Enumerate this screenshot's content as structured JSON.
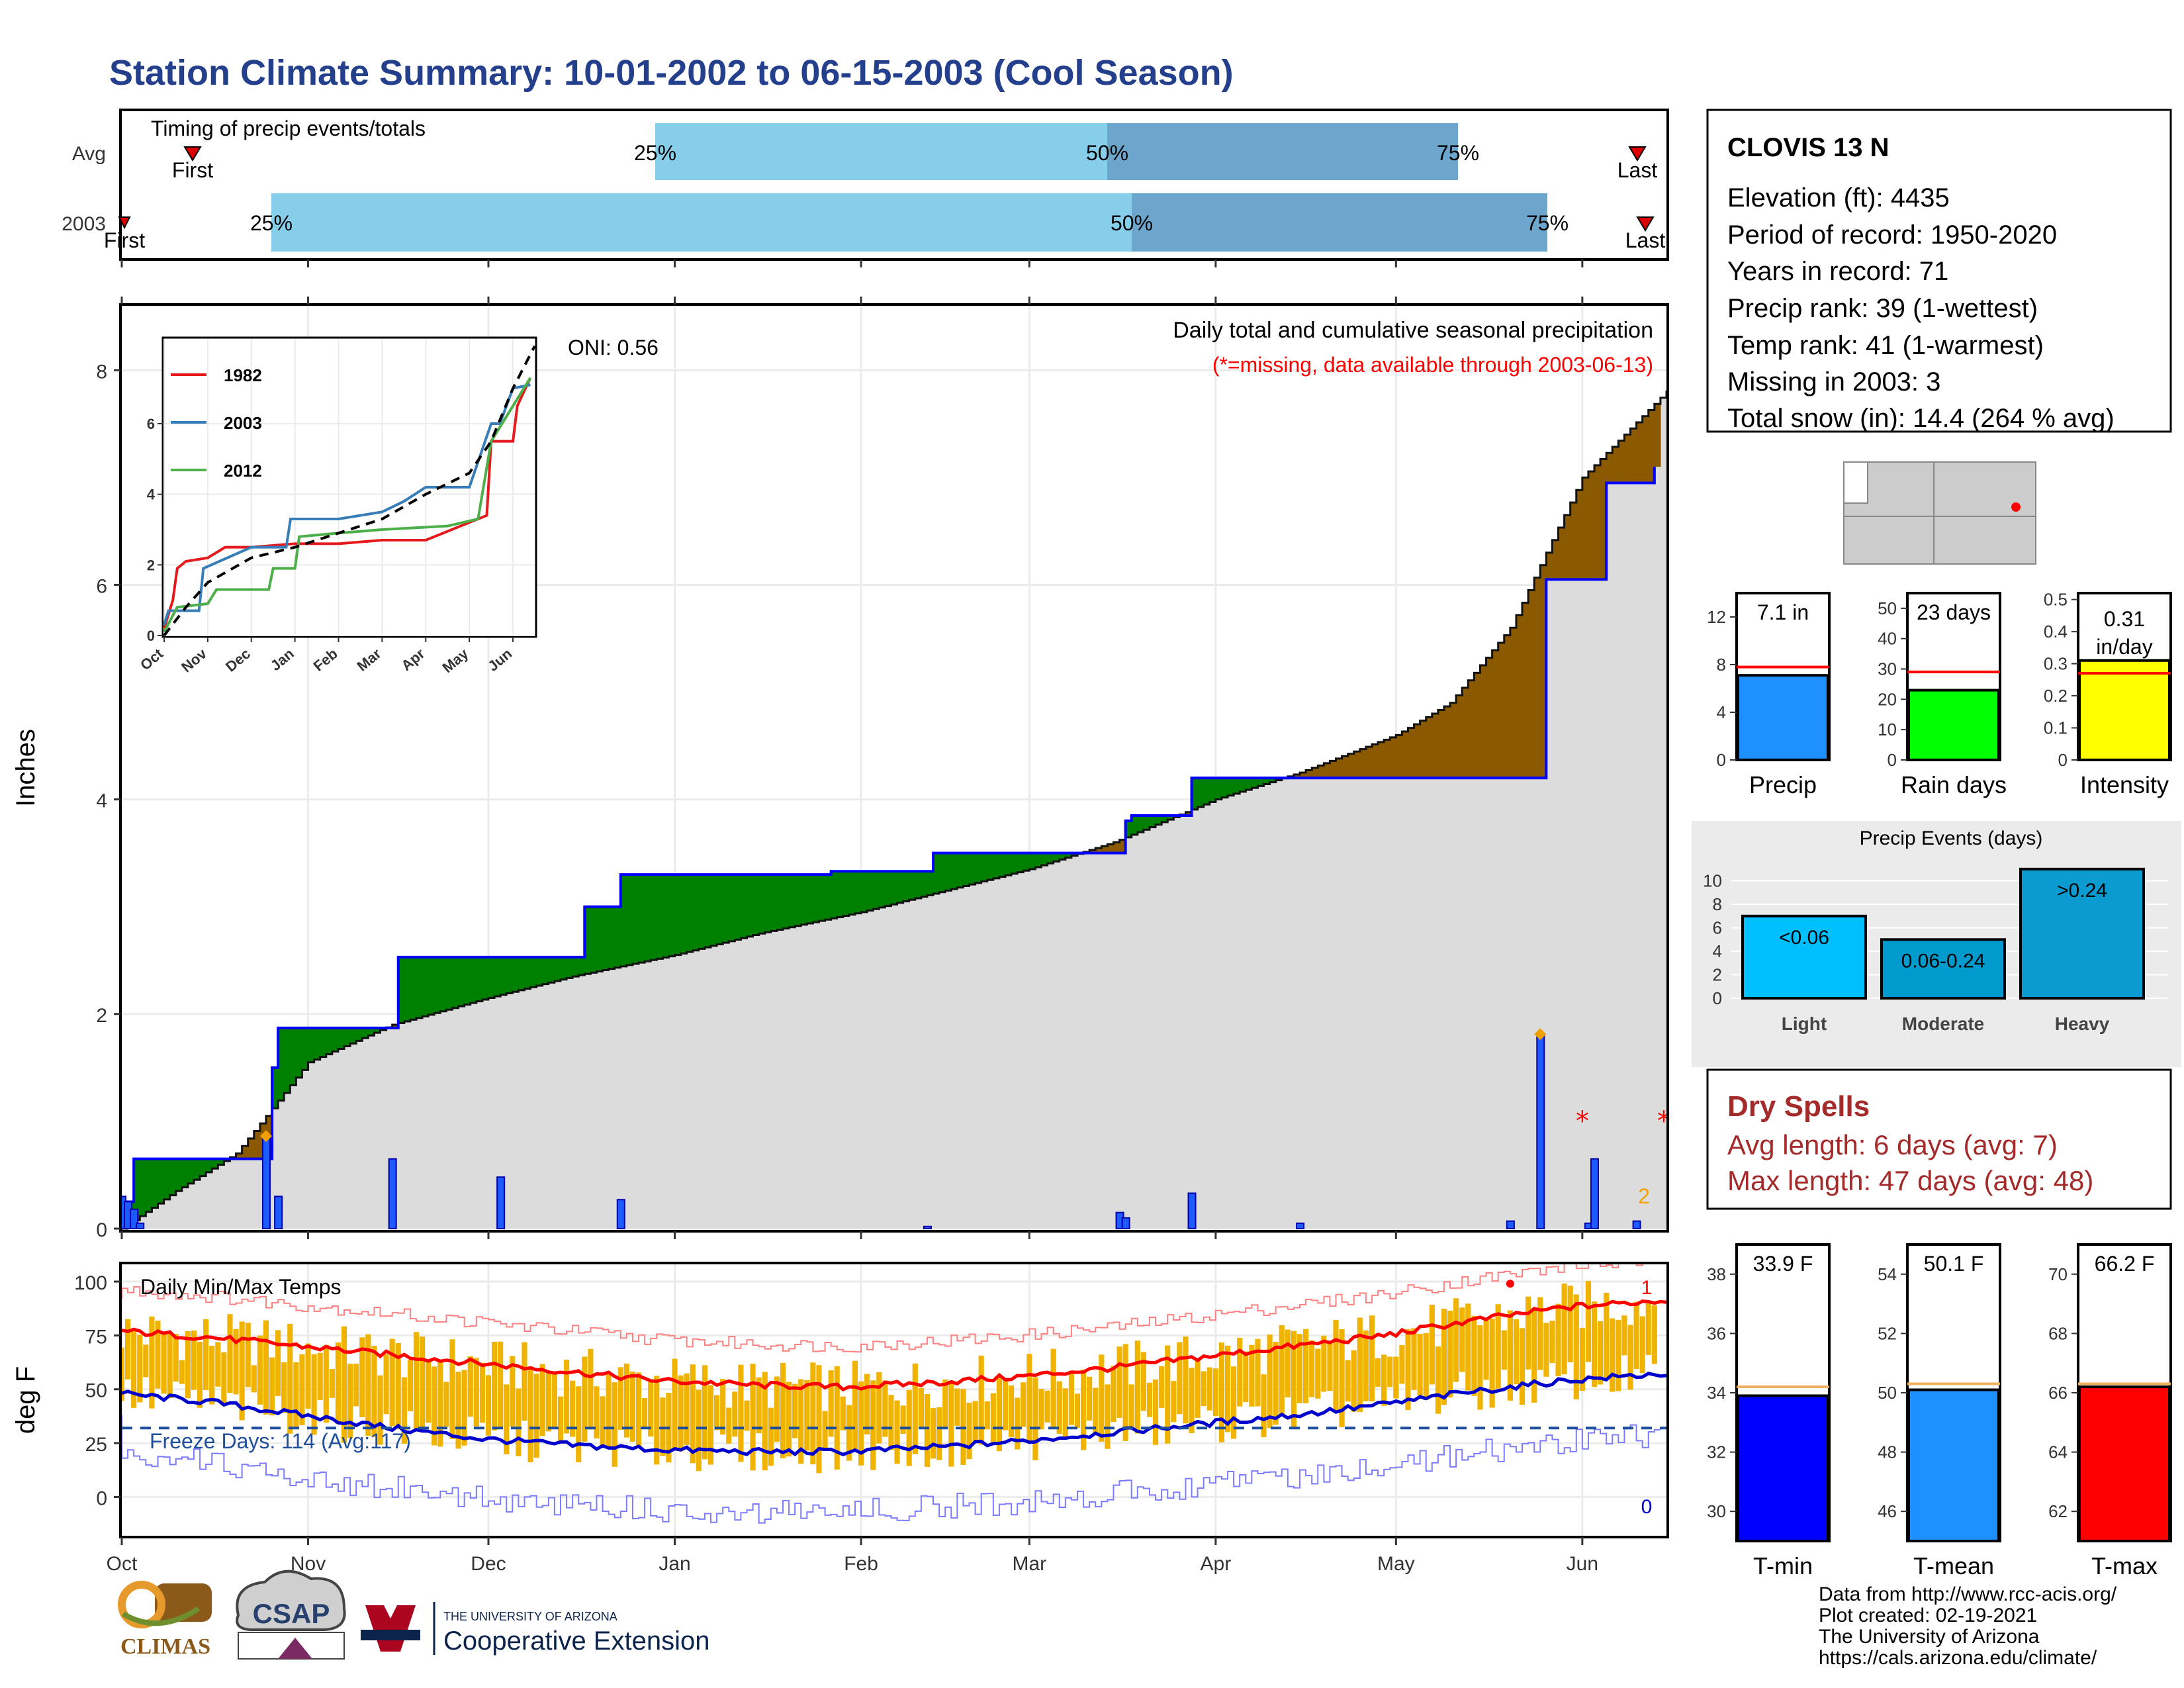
{
  "title": "Station Climate Summary: 10-01-2002 to 06-15-2003 (Cool Season)",
  "timing": {
    "label": "Timing of precip events/totals",
    "rows": [
      {
        "name": "Avg",
        "p25": "Dec 25",
        "p50": "Mar 10",
        "p75": "May 1",
        "first_label": "First",
        "last_label": "Last",
        "first": "Oct 13",
        "last": "Jun 12"
      },
      {
        "name": "2003",
        "p25": "Nov 20",
        "p50": "Mar 14",
        "p75": "May 16",
        "first_label": "First",
        "last_label": "Last",
        "first": "Oct 1",
        "last": "Jun 13"
      }
    ],
    "pct_labels": [
      "25%",
      "50%",
      "75%"
    ]
  },
  "precip_panel": {
    "ylabel": "Inches",
    "heading": "Daily total and cumulative seasonal precipitation",
    "missing_note": "(*=missing, data available through 2003-06-13)",
    "oni": "ONI: 0.56",
    "yticks": [
      0,
      2,
      4,
      6,
      8
    ],
    "missing_count_label": "2"
  },
  "chart_data": [
    {
      "type": "area",
      "name": "cumulative-precip",
      "x_label": "",
      "x_ticks": [
        "Oct",
        "Nov",
        "Dec",
        "Jan",
        "Feb",
        "Mar",
        "Apr",
        "May",
        "Jun"
      ],
      "ylim": [
        0,
        8.6
      ],
      "avg_cumulative": {
        "x": [
          "Oct 1",
          "Oct 10",
          "Oct 20",
          "Oct 25",
          "Nov 1",
          "Nov 15",
          "Dec 1",
          "Dec 15",
          "Jan 1",
          "Jan 15",
          "Feb 1",
          "Feb 15",
          "Mar 1",
          "Mar 15",
          "Apr 1",
          "Apr 15",
          "May 1",
          "May 10",
          "May 20",
          "Jun 1",
          "Jun 15"
        ],
        "y": [
          0,
          0.35,
          0.7,
          1.05,
          1.55,
          1.9,
          2.15,
          2.35,
          2.55,
          2.75,
          2.95,
          3.15,
          3.35,
          3.6,
          4.0,
          4.25,
          4.6,
          4.9,
          5.6,
          7.0,
          7.8
        ]
      },
      "obs_cumulative": {
        "x": [
          "Oct 1",
          "Oct 3",
          "Oct 25",
          "Oct 26",
          "Oct 27",
          "Nov 15",
          "Nov 16",
          "Dec 3",
          "Dec 17",
          "Dec 23",
          "Jan 26",
          "Jan 27",
          "Feb 13",
          "Mar 16",
          "Mar 17",
          "Mar 18",
          "Mar 28",
          "May 25",
          "May 26",
          "Jun 1",
          "Jun 5",
          "Jun 6",
          "Jun 13"
        ],
        "y": [
          0.25,
          0.65,
          0.65,
          1.5,
          1.87,
          1.87,
          2.53,
          2.53,
          3.0,
          3.3,
          3.3,
          3.33,
          3.5,
          3.5,
          3.8,
          3.85,
          4.2,
          4.2,
          6.05,
          6.05,
          6.95,
          6.95,
          7.1
        ]
      },
      "daily_bars": {
        "x": [
          "Oct 1",
          "Oct 2",
          "Oct 3",
          "Oct 4",
          "Oct 25",
          "Oct 27",
          "Nov 15",
          "Dec 3",
          "Dec 23",
          "Feb 12",
          "Mar 16",
          "Mar 17",
          "Mar 28",
          "Apr 15",
          "May 20",
          "May 25",
          "Jun 2",
          "Jun 3",
          "Jun 10"
        ],
        "y": [
          0.3,
          0.25,
          0.18,
          0.05,
          0.85,
          0.3,
          0.65,
          0.48,
          0.27,
          0.02,
          0.15,
          0.1,
          0.33,
          0.05,
          0.07,
          1.8,
          0.05,
          0.65,
          0.07
        ]
      },
      "snow_markers": [
        "Oct 25",
        "May 25"
      ],
      "missing_markers": [
        "Jun 1",
        "Jun 13"
      ]
    },
    {
      "type": "line",
      "name": "inset-cumulative-years",
      "x_ticks": [
        "Oct",
        "Nov",
        "Dec",
        "Jan",
        "Feb",
        "Mar",
        "Apr",
        "May",
        "Jun"
      ],
      "yticks": [
        0,
        2,
        4,
        6
      ],
      "series": [
        {
          "name": "1982",
          "color": "#e41a1c",
          "x": [
            0,
            0.2,
            0.3,
            0.5,
            1.0,
            1.4,
            2.0,
            3.0,
            4.0,
            5.0,
            6.0,
            7.0,
            7.4,
            7.5,
            8.0,
            8.1,
            8.4
          ],
          "y": [
            0.2,
            1.0,
            1.9,
            2.1,
            2.2,
            2.5,
            2.5,
            2.6,
            2.6,
            2.7,
            2.7,
            3.2,
            3.4,
            5.5,
            5.5,
            6.5,
            7.3
          ]
        },
        {
          "name": "2003",
          "color": "#377eb8",
          "x": [
            0,
            0.1,
            0.8,
            0.9,
            2.0,
            2.8,
            2.9,
            4.0,
            5.0,
            5.5,
            6.0,
            7.0,
            7.5,
            7.7,
            8.0,
            8.4
          ],
          "y": [
            0.3,
            0.7,
            0.7,
            1.9,
            2.5,
            2.5,
            3.3,
            3.3,
            3.5,
            3.8,
            4.2,
            4.2,
            6.0,
            6.0,
            7.0,
            7.1
          ]
        },
        {
          "name": "2012",
          "color": "#4daf4a",
          "x": [
            0,
            0.3,
            1.0,
            1.2,
            2.4,
            2.5,
            3.0,
            3.1,
            4.0,
            5.0,
            6.5,
            7.2,
            7.5,
            8.0,
            8.4
          ],
          "y": [
            0.1,
            0.8,
            0.9,
            1.3,
            1.3,
            1.9,
            1.9,
            2.8,
            2.9,
            3.0,
            3.1,
            3.3,
            5.5,
            6.5,
            7.3
          ]
        }
      ],
      "avg_curve": {
        "x": [
          0,
          0.5,
          1,
          2,
          3,
          4,
          5,
          6,
          7,
          7.5,
          8,
          8.5
        ],
        "y": [
          0,
          0.8,
          1.5,
          2.2,
          2.5,
          2.9,
          3.3,
          4.0,
          4.6,
          5.5,
          7.0,
          8.2
        ]
      }
    },
    {
      "type": "line",
      "name": "daily-temps",
      "heading": "Daily Min/Max Temps",
      "ylabel": "deg F",
      "yticks": [
        0,
        25,
        50,
        75,
        100
      ],
      "freeze_label": "Freeze Days: 114 (Avg:117)",
      "freeze_line": 32,
      "record_high_count": "1",
      "record_low_count": "0",
      "avg_max": {
        "x": [
          0,
          15,
          30,
          45,
          60,
          75,
          90,
          105,
          120,
          135,
          150,
          165,
          180,
          195,
          210,
          225,
          240,
          255
        ],
        "y": [
          77,
          74,
          70,
          66,
          62,
          58,
          54,
          52,
          51,
          53,
          56,
          60,
          65,
          70,
          75,
          82,
          88,
          91
        ]
      },
      "avg_min": {
        "x": [
          0,
          15,
          30,
          45,
          60,
          75,
          90,
          105,
          120,
          135,
          150,
          165,
          180,
          195,
          210,
          225,
          240,
          255
        ],
        "y": [
          48,
          44,
          38,
          32,
          27,
          24,
          22,
          21,
          21,
          23,
          26,
          30,
          34,
          38,
          43,
          49,
          54,
          57
        ]
      }
    },
    {
      "type": "bar",
      "name": "precip-summary",
      "categories": [
        "Precip",
        "Rain days",
        "Intensity"
      ],
      "values": [
        7.1,
        23,
        0.31
      ],
      "value_labels": [
        "7.1 in",
        "23 days",
        "0.31 in/day"
      ],
      "averages": [
        7.8,
        29,
        0.27
      ],
      "ylims": [
        [
          0,
          14
        ],
        [
          0,
          55
        ],
        [
          0,
          0.52
        ]
      ],
      "yticks": [
        [
          0,
          4,
          8,
          12
        ],
        [
          0,
          10,
          20,
          30,
          40,
          50
        ],
        [
          0.0,
          0.1,
          0.2,
          0.3,
          0.4,
          0.5
        ]
      ],
      "colors": [
        "#1e90ff",
        "#00ff00",
        "#ffff00"
      ]
    },
    {
      "type": "bar",
      "name": "precip-events",
      "title": "Precip Events (days)",
      "categories": [
        "Light",
        "Moderate",
        "Heavy"
      ],
      "values": [
        7,
        5,
        11
      ],
      "value_labels": [
        "<0.06",
        "0.06-0.24",
        ">0.24"
      ],
      "yticks": [
        0,
        2,
        4,
        6,
        8,
        10
      ],
      "ylim": [
        0,
        11.5
      ]
    },
    {
      "type": "bar",
      "name": "temp-summary",
      "categories": [
        "T-min",
        "T-mean",
        "T-max"
      ],
      "values": [
        33.9,
        50.1,
        66.2
      ],
      "value_labels": [
        "33.9 F",
        "50.1 F",
        "66.2 F"
      ],
      "averages": [
        34.2,
        50.3,
        66.3
      ],
      "ylims": [
        [
          29,
          39
        ],
        [
          45,
          55
        ],
        [
          61,
          71
        ]
      ],
      "yticks": [
        [
          30,
          32,
          34,
          36,
          38
        ],
        [
          46,
          48,
          50,
          52,
          54
        ],
        [
          62,
          64,
          66,
          68,
          70
        ]
      ],
      "colors": [
        "#0000ff",
        "#1e90ff",
        "#ff0000"
      ]
    }
  ],
  "station": {
    "name": "CLOVIS 13 N",
    "lines": [
      "Elevation (ft): 4435",
      "Period of record: 1950-2020",
      "Years in record: 71",
      "Precip rank: 39 (1-wettest)",
      "Temp rank: 41 (1-warmest)",
      "Missing in 2003: 3",
      "Total snow (in): 14.4 (264 % avg)"
    ]
  },
  "dry_spells": {
    "title": "Dry Spells",
    "avg": "Avg length: 6 days (avg: 7)",
    "max": "Max length: 47 days (avg: 48)"
  },
  "footer": {
    "credits": [
      "Data from http://www.rcc-acis.org/",
      "Plot created: 02-19-2021",
      "The University of Arizona",
      "https://cals.arizona.edu/climate/"
    ],
    "logos": {
      "climas": "CLIMAS",
      "csap": "CSAP",
      "ua_small": "THE UNIVERSITY OF ARIZONA",
      "ua_big": "Cooperative Extension"
    }
  },
  "colors": {
    "title": "#243f8c",
    "avg_area": "#dcdcdc",
    "wetter": "#008000",
    "drier": "#8b5a00",
    "obs_line": "#0000ff",
    "timing_light": "#87ceeb",
    "timing_dark": "#6ca6cd",
    "temp_bars": "#f0b400",
    "dry_spell": "#a52a2a"
  }
}
